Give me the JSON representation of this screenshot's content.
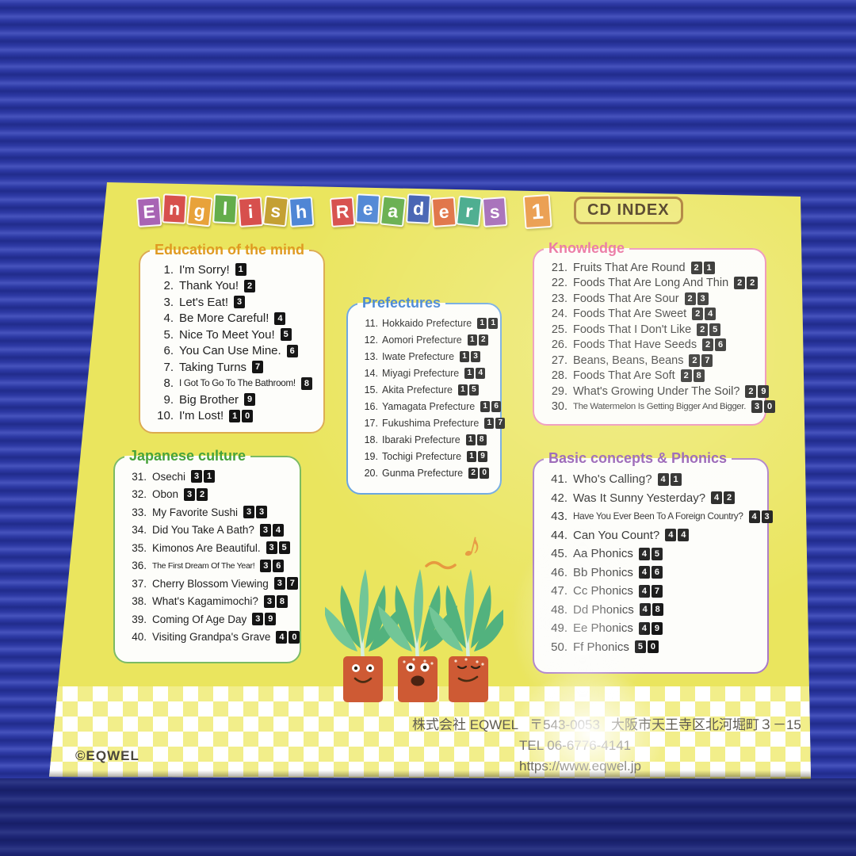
{
  "title": {
    "text": "English Readers 1",
    "cd_index_label": "CD INDEX",
    "words": [
      [
        {
          "ch": "E",
          "color": "#a864b4"
        },
        {
          "ch": "n",
          "color": "#d7504d"
        },
        {
          "ch": "g",
          "color": "#e8a23a"
        },
        {
          "ch": "l",
          "color": "#64ad4b"
        },
        {
          "ch": "i",
          "color": "#d7504d"
        },
        {
          "ch": "s",
          "color": "#c4a033"
        },
        {
          "ch": "h",
          "color": "#4f86d5"
        }
      ],
      [
        {
          "ch": "R",
          "color": "#d7504d"
        },
        {
          "ch": "e",
          "color": "#4f86d5"
        },
        {
          "ch": "a",
          "color": "#64ad4b"
        },
        {
          "ch": "d",
          "color": "#3d5cb0"
        },
        {
          "ch": "e",
          "color": "#de6a3b"
        },
        {
          "ch": "r",
          "color": "#3aa585"
        },
        {
          "ch": "s",
          "color": "#9e62b4"
        }
      ],
      [
        {
          "ch": "1",
          "color": "#e8913a"
        }
      ]
    ]
  },
  "panels": [
    {
      "id": "education-of-the-mind",
      "title": "Education of the mind",
      "accent": "#e09a22",
      "border": "#dcab4e",
      "items": [
        {
          "num": 1,
          "label": "I'm Sorry!",
          "track": "1"
        },
        {
          "num": 2,
          "label": "Thank You!",
          "track": "2"
        },
        {
          "num": 3,
          "label": "Let's Eat!",
          "track": "3"
        },
        {
          "num": 4,
          "label": "Be More Careful!",
          "track": "4"
        },
        {
          "num": 5,
          "label": "Nice To Meet You!",
          "track": "5"
        },
        {
          "num": 6,
          "label": "You Can Use Mine.",
          "track": "6"
        },
        {
          "num": 7,
          "label": "Taking Turns",
          "track": "7"
        },
        {
          "num": 8,
          "label": "I Got To Go To The Bathroom!",
          "track": "8"
        },
        {
          "num": 9,
          "label": "Big Brother",
          "track": "9"
        },
        {
          "num": 10,
          "label": "I'm Lost!",
          "track": "10"
        }
      ]
    },
    {
      "id": "prefectures",
      "title": "Prefectures",
      "accent": "#3c7fd2",
      "border": "#66a3de",
      "items": [
        {
          "num": 11,
          "label": "Hokkaido Prefecture",
          "track": "11"
        },
        {
          "num": 12,
          "label": "Aomori Prefecture",
          "track": "12"
        },
        {
          "num": 13,
          "label": "Iwate Prefecture",
          "track": "13"
        },
        {
          "num": 14,
          "label": "Miyagi Prefecture",
          "track": "14"
        },
        {
          "num": 15,
          "label": "Akita Prefecture",
          "track": "15"
        },
        {
          "num": 16,
          "label": "Yamagata Prefecture",
          "track": "16"
        },
        {
          "num": 17,
          "label": "Fukushima Prefecture",
          "track": "17"
        },
        {
          "num": 18,
          "label": "Ibaraki Prefecture",
          "track": "18"
        },
        {
          "num": 19,
          "label": "Tochigi Prefecture",
          "track": "19"
        },
        {
          "num": 20,
          "label": "Gunma Prefecture",
          "track": "20"
        }
      ]
    },
    {
      "id": "knowledge",
      "title": "Knowledge",
      "accent": "#e75f94",
      "border": "#ec8ab2",
      "items": [
        {
          "num": 21,
          "label": "Fruits That Are Round",
          "track": "21"
        },
        {
          "num": 22,
          "label": "Foods That Are Long And Thin",
          "track": "22"
        },
        {
          "num": 23,
          "label": "Foods That Are Sour",
          "track": "23"
        },
        {
          "num": 24,
          "label": "Foods That Are Sweet",
          "track": "24"
        },
        {
          "num": 25,
          "label": "Foods That I Don't Like",
          "track": "25"
        },
        {
          "num": 26,
          "label": "Foods That Have Seeds",
          "track": "26"
        },
        {
          "num": 27,
          "label": "Beans, Beans, Beans",
          "track": "27"
        },
        {
          "num": 28,
          "label": "Foods That Are Soft",
          "track": "28"
        },
        {
          "num": 29,
          "label": "What's Growing Under The Soil?",
          "track": "29"
        },
        {
          "num": 30,
          "label": "The Watermelon Is Getting Bigger And Bigger.",
          "track": "30"
        }
      ]
    },
    {
      "id": "japanese-culture",
      "title": "Japanese culture",
      "accent": "#47a33a",
      "border": "#7cbb63",
      "items": [
        {
          "num": 31,
          "label": "Osechi",
          "track": "31"
        },
        {
          "num": 32,
          "label": "Obon",
          "track": "32"
        },
        {
          "num": 33,
          "label": "My Favorite Sushi",
          "track": "33"
        },
        {
          "num": 34,
          "label": "Did You Take A Bath?",
          "track": "34"
        },
        {
          "num": 35,
          "label": "Kimonos Are Beautiful.",
          "track": "35"
        },
        {
          "num": 36,
          "label": "The First Dream Of The Year!",
          "track": "36"
        },
        {
          "num": 37,
          "label": "Cherry Blossom Viewing",
          "track": "37"
        },
        {
          "num": 38,
          "label": "What's Kagamimochi?",
          "track": "38"
        },
        {
          "num": 39,
          "label": "Coming Of Age Day",
          "track": "39"
        },
        {
          "num": 40,
          "label": "Visiting Grandpa's Grave",
          "track": "40"
        }
      ]
    },
    {
      "id": "basic-concepts-phonics",
      "title": "Basic concepts & Phonics",
      "accent": "#8b4fae",
      "border": "#a979c4",
      "items": [
        {
          "num": 41,
          "label": "Who's Calling?",
          "track": "41"
        },
        {
          "num": 42,
          "label": "Was It Sunny Yesterday?",
          "track": "42"
        },
        {
          "num": 43,
          "label": "Have You Ever Been To A Foreign Country?",
          "track": "43"
        },
        {
          "num": 44,
          "label": "Can You Count?",
          "track": "44"
        },
        {
          "num": 45,
          "label": "Aa Phonics",
          "track": "45"
        },
        {
          "num": 46,
          "label": "Bb Phonics",
          "track": "46"
        },
        {
          "num": 47,
          "label": "Cc Phonics",
          "track": "47"
        },
        {
          "num": 48,
          "label": "Dd Phonics",
          "track": "48"
        },
        {
          "num": 49,
          "label": "Ee Phonics",
          "track": "49"
        },
        {
          "num": 50,
          "label": "Ff Phonics",
          "track": "50"
        }
      ]
    }
  ],
  "footer": {
    "company": "株式会社 EQWEL",
    "postal": "〒543-0053",
    "address": "大阪市天王寺区北河堀町３－15",
    "tel": "TEL 06-6776-4141",
    "url": "https://www.eqwel.jp",
    "copyright": "©EQWEL"
  },
  "icons": {
    "music_note": "♪"
  },
  "colors": {
    "box_yellow": "#eae55e",
    "background_blue": "#2d39a4",
    "checker_yellow": "#f2ee8a",
    "track_badge": "#141414",
    "carrot_pot": "#ce5a34",
    "carrot_leaf_dark": "#52b27e",
    "carrot_leaf_light": "#72c697"
  }
}
